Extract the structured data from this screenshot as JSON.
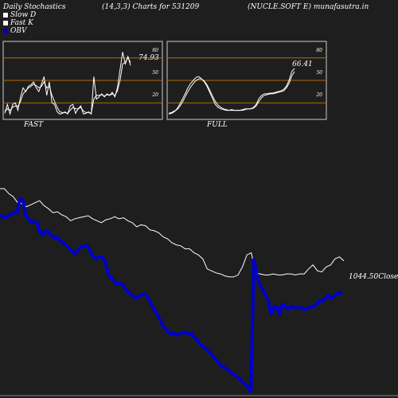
{
  "header": {
    "left": "Daily Stochastics",
    "params": "(14,3,3) Charts for 531209",
    "symbol": "(NUCLE.SOFT E) munafasutra.in"
  },
  "legend": [
    {
      "label": "Slow  D",
      "color": "#ffffff"
    },
    {
      "label": "Fast K",
      "color": "#ffffff"
    },
    {
      "label": "OBV",
      "color": "#0000cc"
    }
  ],
  "colors": {
    "background": "#1e1e1e",
    "grid": "#b36b00",
    "line": "#ffffff",
    "obv": "#0000cc"
  },
  "chart_data": [
    {
      "type": "line",
      "title": "FAST",
      "levels": [
        80,
        50,
        20
      ],
      "ylim": [
        0,
        100
      ],
      "value_label": "74.93",
      "series": [
        {
          "name": "Fast K",
          "values": [
            6,
            18,
            5,
            18,
            20,
            10,
            28,
            40,
            35,
            42,
            44,
            48,
            40,
            35,
            45,
            55,
            30,
            48,
            20,
            18,
            8,
            5,
            6,
            8,
            5,
            16,
            18,
            6,
            12,
            16,
            5,
            6,
            8,
            5,
            55,
            25,
            28,
            32,
            28,
            32,
            30,
            34,
            28,
            40,
            64,
            88,
            72,
            82,
            70
          ]
        },
        {
          "name": "Slow  D",
          "values": [
            8,
            12,
            10,
            14,
            16,
            15,
            22,
            32,
            36,
            40,
            42,
            45,
            43,
            40,
            42,
            48,
            40,
            42,
            30,
            22,
            14,
            8,
            7,
            7,
            6,
            10,
            14,
            12,
            12,
            14,
            9,
            7,
            7,
            6,
            25,
            30,
            30,
            31,
            29,
            31,
            30,
            32,
            30,
            36,
            50,
            72,
            74,
            80,
            74
          ]
        }
      ]
    },
    {
      "type": "line",
      "title": "FULL",
      "levels": [
        80,
        50,
        20
      ],
      "ylim": [
        0,
        100
      ],
      "value_label": "66.41",
      "series": [
        {
          "name": "Fast K",
          "values": [
            5,
            6,
            8,
            12,
            18,
            25,
            32,
            40,
            46,
            50,
            54,
            55,
            52,
            48,
            42,
            34,
            26,
            18,
            14,
            12,
            11,
            10,
            10,
            11,
            10,
            10,
            10,
            11,
            12,
            12,
            12,
            14,
            18,
            26,
            30,
            32,
            32,
            33,
            33,
            34,
            35,
            36,
            38,
            42,
            50,
            62,
            66
          ]
        },
        {
          "name": "Slow  D",
          "values": [
            6,
            7,
            9,
            11,
            15,
            21,
            28,
            35,
            41,
            46,
            50,
            52,
            52,
            49,
            44,
            37,
            29,
            22,
            17,
            14,
            12,
            11,
            10,
            10,
            10,
            10,
            10,
            10,
            11,
            12,
            12,
            13,
            16,
            22,
            27,
            30,
            31,
            32,
            32,
            33,
            34,
            35,
            36,
            40,
            46,
            56,
            62
          ]
        }
      ]
    },
    {
      "type": "line",
      "close_label": "1044.50Close",
      "series": [
        {
          "name": "Close",
          "values": [
            100,
            100,
            95,
            92,
            86,
            85,
            82,
            84,
            86,
            88,
            83,
            80,
            76,
            77,
            74,
            72,
            68,
            70,
            71,
            72,
            73,
            70,
            68,
            66,
            69,
            70,
            72,
            70,
            71,
            68,
            66,
            62,
            64,
            63,
            59,
            58,
            56,
            52,
            50,
            46,
            44,
            43,
            40,
            40,
            36,
            34,
            30,
            20,
            18,
            16,
            15,
            13,
            12,
            12,
            14,
            22,
            34,
            36,
            16,
            15,
            14,
            14,
            15,
            14,
            14,
            15,
            15,
            14,
            15,
            15,
            20,
            24,
            18,
            17,
            22,
            24,
            30,
            32,
            28
          ]
        },
        {
          "name": "OBV",
          "values": [
            62,
            56,
            55,
            58,
            62,
            65,
            65,
            92,
            90,
            58,
            52,
            44,
            46,
            44,
            24,
            20,
            28,
            26,
            18,
            14,
            16,
            8,
            4,
            0,
            -5,
            -12,
            -18,
            -14,
            -6,
            -4,
            -1,
            -4,
            -18,
            -26,
            -28,
            -24,
            -26,
            -36,
            -60,
            -68,
            -72,
            -80,
            -78,
            -80,
            -90,
            -96,
            -100,
            -106,
            -106,
            -104,
            -100,
            -100,
            -108,
            -120,
            -130,
            -140,
            -150,
            -162,
            -170,
            -176,
            -180,
            -178,
            -182,
            -180,
            -178,
            -176,
            -180,
            -178,
            -186,
            -190,
            -200,
            -204,
            -208,
            -214,
            -220,
            -226,
            -234,
            -240,
            -246,
            -248,
            -252,
            -258,
            -262,
            -266,
            -270,
            -276,
            -282,
            -288,
            -296,
            -30,
            -60,
            -80,
            -90,
            -100,
            -112,
            -140,
            -124,
            -126,
            -140,
            -120,
            -124,
            -130,
            -124,
            -126,
            -128,
            -126,
            -128,
            -130,
            -128,
            -126,
            -124,
            -120,
            -112,
            -114,
            -108,
            -102,
            -108,
            -104,
            -100,
            -96,
            -100
          ]
        }
      ]
    }
  ]
}
